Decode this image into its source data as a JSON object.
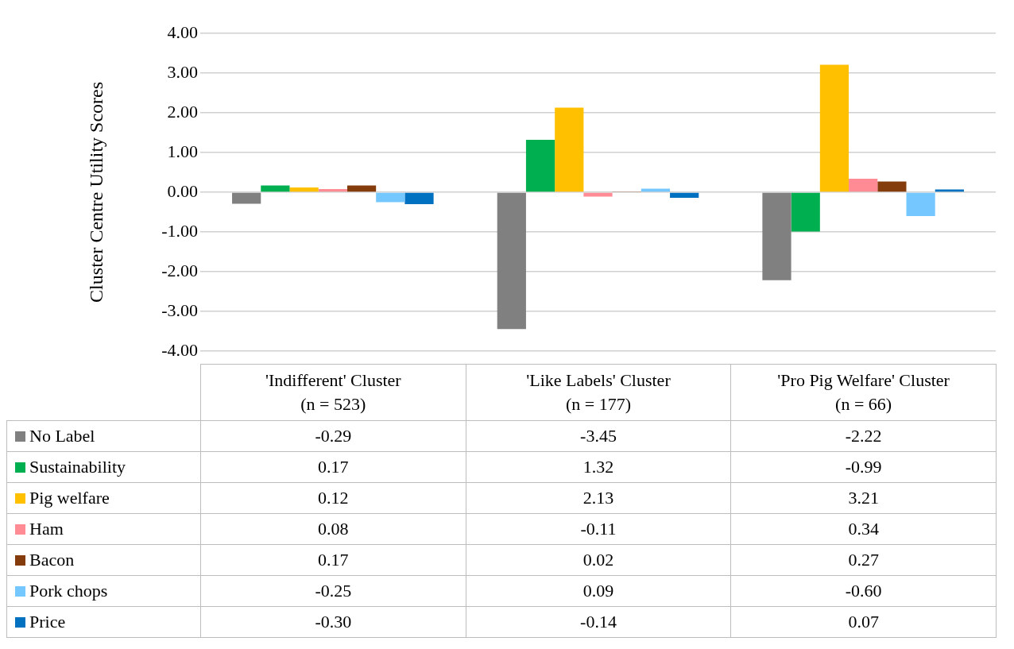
{
  "chart_data": {
    "type": "bar",
    "ylabel": "Cluster Centre Utility Scores",
    "categories": [
      "'Indifferent' Cluster\n(n = 523)",
      "'Like Labels' Cluster\n(n = 177)",
      "'Pro Pig Welfare' Cluster\n(n = 66)"
    ],
    "series": [
      {
        "name": "No Label",
        "color": "#808080",
        "values": [
          -0.29,
          -3.45,
          -2.22
        ],
        "value_labels": [
          "-0.29",
          "-3.45",
          "-2.22"
        ]
      },
      {
        "name": "Sustainability",
        "color": "#00b050",
        "values": [
          0.17,
          1.32,
          -0.99
        ],
        "value_labels": [
          "0.17",
          "1.32",
          "-0.99"
        ]
      },
      {
        "name": "Pig welfare",
        "color": "#ffc000",
        "values": [
          0.12,
          2.13,
          3.21
        ],
        "value_labels": [
          "0.12",
          "2.13",
          "3.21"
        ]
      },
      {
        "name": "Ham",
        "color": "#ff8b94",
        "values": [
          0.08,
          -0.11,
          0.34
        ],
        "value_labels": [
          "0.08",
          "-0.11",
          "0.34"
        ]
      },
      {
        "name": "Bacon",
        "color": "#843c0c",
        "values": [
          0.17,
          0.02,
          0.27
        ],
        "value_labels": [
          "0.17",
          "0.02",
          "0.27"
        ]
      },
      {
        "name": "Pork chops",
        "color": "#75c8ff",
        "values": [
          -0.25,
          0.09,
          -0.6
        ],
        "value_labels": [
          "-0.25",
          "0.09",
          "-0.60"
        ]
      },
      {
        "name": "Price",
        "color": "#0070c0",
        "values": [
          -0.3,
          -0.14,
          0.07
        ],
        "value_labels": [
          "-0.30",
          "-0.14",
          "0.07"
        ]
      }
    ],
    "ylim": [
      -4,
      4
    ],
    "yticks": [
      {
        "value": -4,
        "label": "-4.00"
      },
      {
        "value": -3,
        "label": "-3.00"
      },
      {
        "value": -2,
        "label": "-2.00"
      },
      {
        "value": -1,
        "label": "-1.00"
      },
      {
        "value": 0,
        "label": "0.00"
      },
      {
        "value": 1,
        "label": "1.00"
      },
      {
        "value": 2,
        "label": "2.00"
      },
      {
        "value": 3,
        "label": "3.00"
      },
      {
        "value": 4,
        "label": "4.00"
      }
    ],
    "grid": "y",
    "legend": "bottom"
  }
}
